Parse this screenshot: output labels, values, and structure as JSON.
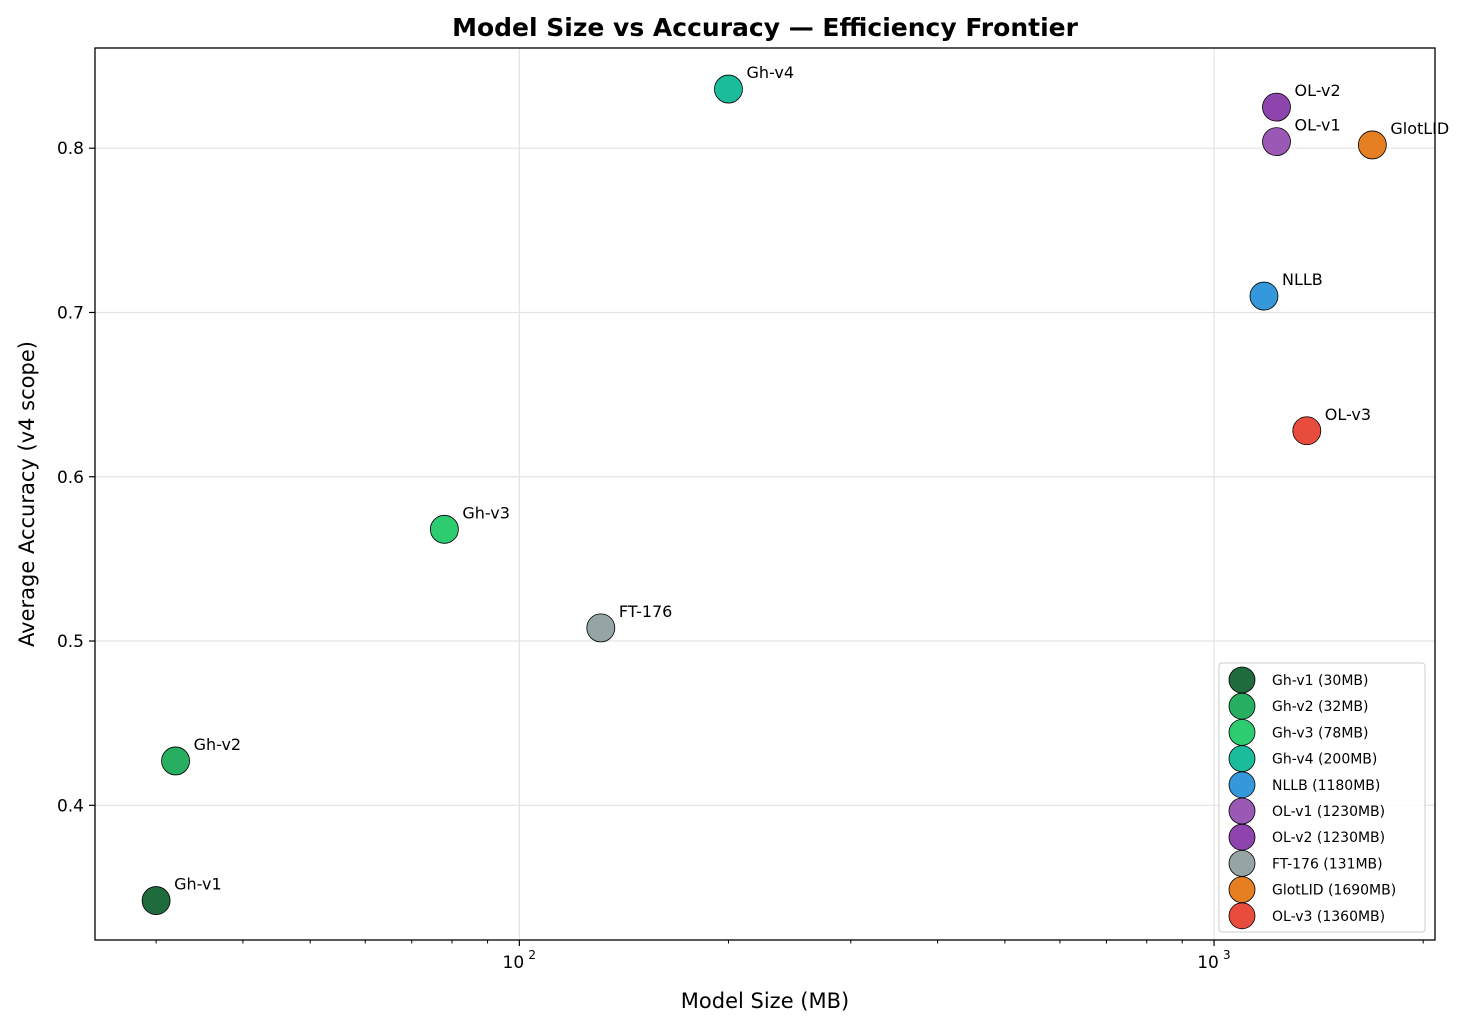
{
  "chart_data": {
    "type": "scatter",
    "title": "Model Size vs Accuracy — Efficiency Frontier",
    "xlabel": "Model Size (MB)",
    "ylabel": "Average Accuracy (v4 scope)",
    "xscale": "log",
    "xlim": [
      24.5,
      2080
    ],
    "ylim": [
      0.318,
      0.861
    ],
    "xticks": [
      {
        "value": 100,
        "label": "10",
        "exp": "2"
      },
      {
        "value": 1000,
        "label": "10",
        "exp": "3"
      }
    ],
    "yticks": [
      {
        "value": 0.4,
        "label": "0.4"
      },
      {
        "value": 0.5,
        "label": "0.5"
      },
      {
        "value": 0.6,
        "label": "0.6"
      },
      {
        "value": 0.7,
        "label": "0.7"
      },
      {
        "value": 0.8,
        "label": "0.8"
      }
    ],
    "grid": true,
    "legend_position": "lower-right",
    "series": [
      {
        "name": "Gh-v1 (30MB)",
        "label": "Gh-v1",
        "x": 30,
        "y": 0.342,
        "color": "#1e6b3e"
      },
      {
        "name": "Gh-v2 (32MB)",
        "label": "Gh-v2",
        "x": 32,
        "y": 0.427,
        "color": "#27ae60"
      },
      {
        "name": "Gh-v3 (78MB)",
        "label": "Gh-v3",
        "x": 78,
        "y": 0.568,
        "color": "#2ecc71"
      },
      {
        "name": "Gh-v4 (200MB)",
        "label": "Gh-v4",
        "x": 200,
        "y": 0.836,
        "color": "#1abc9c"
      },
      {
        "name": "NLLB (1180MB)",
        "label": "NLLB",
        "x": 1180,
        "y": 0.71,
        "color": "#3498db"
      },
      {
        "name": "OL-v1 (1230MB)",
        "label": "OL-v1",
        "x": 1230,
        "y": 0.804,
        "color": "#9b59b6"
      },
      {
        "name": "OL-v2 (1230MB)",
        "label": "OL-v2",
        "x": 1230,
        "y": 0.825,
        "color": "#8e44ad"
      },
      {
        "name": "FT-176 (131MB)",
        "label": "FT-176",
        "x": 131,
        "y": 0.508,
        "color": "#95a5a6"
      },
      {
        "name": "GlotLID (1690MB)",
        "label": "GlotLID",
        "x": 1690,
        "y": 0.802,
        "color": "#e67e22"
      },
      {
        "name": "OL-v3 (1360MB)",
        "label": "OL-v3",
        "x": 1360,
        "y": 0.628,
        "color": "#e74c3c"
      }
    ]
  }
}
